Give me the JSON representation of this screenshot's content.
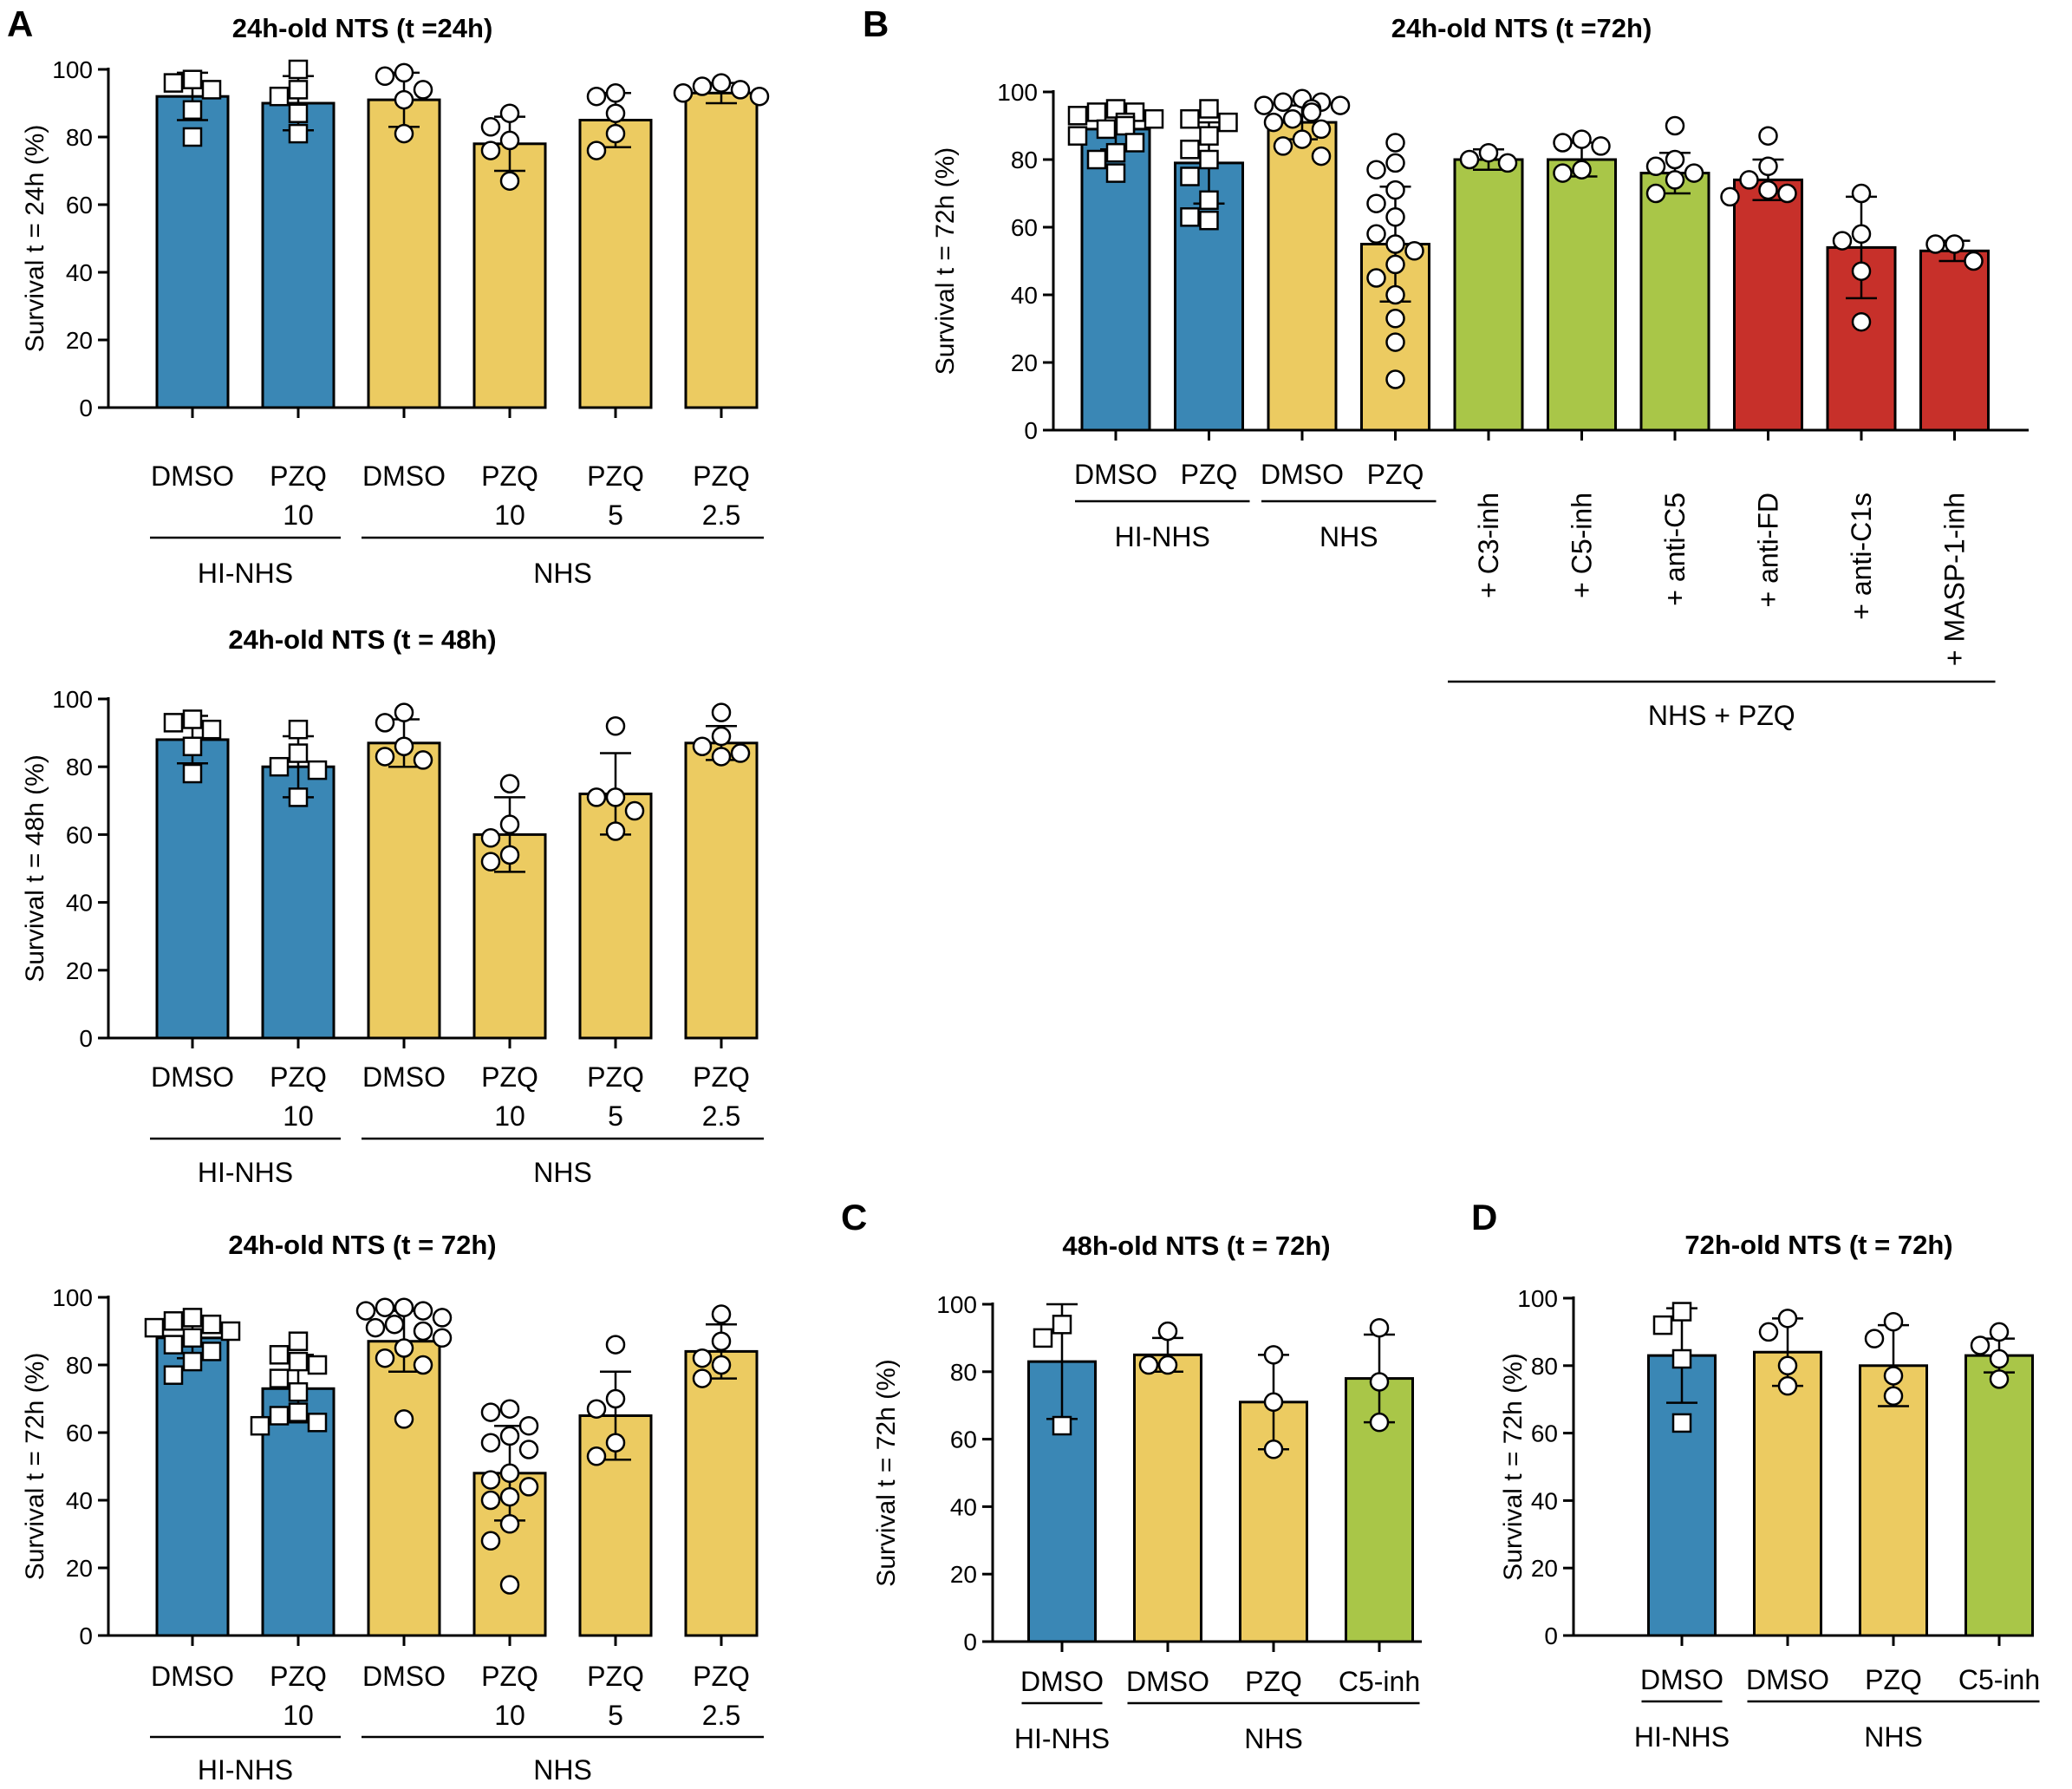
{
  "figure": {
    "colors": {
      "hi_nhs": "#3a87b5",
      "nhs": "#eccb61",
      "inhibitor": "#a9c648",
      "antibody": "#c7302a",
      "axis": "#000000",
      "marker_fill": "#ffffff"
    }
  },
  "chart_data": [
    {
      "id": "A1",
      "panel_letter": "A",
      "type": "bar",
      "title": "24h-old NTS (t =24h)",
      "ylabel": "Survival t = 24h (%)",
      "ylim": [
        0,
        100
      ],
      "yticks": [
        0,
        20,
        40,
        60,
        80,
        100
      ],
      "categories": [
        {
          "lines": [
            "DMSO"
          ],
          "value": 92,
          "sd": 7,
          "color": "hi_nhs",
          "marker": "square",
          "points": [
            97,
            96,
            94,
            88,
            80
          ]
        },
        {
          "lines": [
            "PZQ",
            "10"
          ],
          "value": 90,
          "sd": 8,
          "color": "hi_nhs",
          "marker": "square",
          "points": [
            100,
            94,
            92,
            87,
            81
          ]
        },
        {
          "lines": [
            "DMSO"
          ],
          "value": 91,
          "sd": 8,
          "color": "nhs",
          "marker": "circle",
          "points": [
            99,
            98,
            94,
            91,
            81
          ]
        },
        {
          "lines": [
            "PZQ",
            "10"
          ],
          "value": 78,
          "sd": 8,
          "color": "nhs",
          "marker": "circle",
          "points": [
            87,
            83,
            79,
            76,
            67
          ]
        },
        {
          "lines": [
            "PZQ",
            "5"
          ],
          "value": 85,
          "sd": 8,
          "color": "nhs",
          "marker": "circle",
          "points": [
            93,
            92,
            87,
            81,
            76
          ]
        },
        {
          "lines": [
            "PZQ",
            "2.5"
          ],
          "value": 93,
          "sd": 3,
          "color": "nhs",
          "marker": "circle",
          "points": [
            96,
            95,
            94,
            93,
            92
          ]
        }
      ],
      "groups": [
        {
          "label": "HI-NHS",
          "from": 0,
          "to": 1
        },
        {
          "label": "NHS",
          "from": 2,
          "to": 5
        }
      ]
    },
    {
      "id": "A2",
      "panel_letter": "",
      "type": "bar",
      "title": "24h-old NTS (t = 48h)",
      "ylabel": "Survival t = 48h (%)",
      "ylim": [
        0,
        100
      ],
      "yticks": [
        0,
        20,
        40,
        60,
        80,
        100
      ],
      "categories": [
        {
          "lines": [
            "DMSO"
          ],
          "value": 88,
          "sd": 7,
          "color": "hi_nhs",
          "marker": "square",
          "points": [
            94,
            93,
            91,
            86,
            78
          ]
        },
        {
          "lines": [
            "PZQ",
            "10"
          ],
          "value": 80,
          "sd": 9,
          "color": "hi_nhs",
          "marker": "square",
          "points": [
            91,
            84,
            80,
            79,
            71
          ]
        },
        {
          "lines": [
            "DMSO"
          ],
          "value": 87,
          "sd": 7,
          "color": "nhs",
          "marker": "circle",
          "points": [
            96,
            93,
            86,
            83,
            82
          ]
        },
        {
          "lines": [
            "PZQ",
            "10"
          ],
          "value": 60,
          "sd": 11,
          "color": "nhs",
          "marker": "circle",
          "points": [
            75,
            63,
            59,
            54,
            52
          ]
        },
        {
          "lines": [
            "PZQ",
            "5"
          ],
          "value": 72,
          "sd": 12,
          "color": "nhs",
          "marker": "circle",
          "points": [
            92,
            71,
            71,
            67,
            61
          ]
        },
        {
          "lines": [
            "PZQ",
            "2.5"
          ],
          "value": 87,
          "sd": 5,
          "color": "nhs",
          "marker": "circle",
          "points": [
            96,
            89,
            86,
            84,
            83
          ]
        }
      ],
      "groups": [
        {
          "label": "HI-NHS",
          "from": 0,
          "to": 1
        },
        {
          "label": "NHS",
          "from": 2,
          "to": 5
        }
      ]
    },
    {
      "id": "A3",
      "panel_letter": "",
      "type": "bar",
      "title": "24h-old NTS (t = 72h)",
      "ylabel": "Survival t = 72h (%)",
      "ylim": [
        0,
        100
      ],
      "yticks": [
        0,
        20,
        40,
        60,
        80,
        100
      ],
      "categories": [
        {
          "lines": [
            "DMSO"
          ],
          "value": 88,
          "sd": 6,
          "color": "hi_nhs",
          "marker": "square",
          "points": [
            94,
            93,
            92,
            91,
            90,
            88,
            86,
            84,
            81,
            77
          ]
        },
        {
          "lines": [
            "PZQ",
            "10"
          ],
          "value": 73,
          "sd": 10,
          "color": "hi_nhs",
          "marker": "square",
          "points": [
            87,
            83,
            81,
            80,
            76,
            72,
            66,
            65,
            63,
            62
          ]
        },
        {
          "lines": [
            "DMSO"
          ],
          "value": 87,
          "sd": 9,
          "color": "nhs",
          "marker": "circle",
          "points": [
            97,
            97,
            96,
            96,
            94,
            92,
            91,
            90,
            88,
            85,
            82,
            80,
            64
          ]
        },
        {
          "lines": [
            "PZQ",
            "10"
          ],
          "value": 48,
          "sd": 14,
          "color": "nhs",
          "marker": "circle",
          "points": [
            67,
            66,
            62,
            59,
            57,
            55,
            48,
            46,
            44,
            41,
            40,
            33,
            28,
            15
          ]
        },
        {
          "lines": [
            "PZQ",
            "5"
          ],
          "value": 65,
          "sd": 13,
          "color": "nhs",
          "marker": "circle",
          "points": [
            86,
            70,
            67,
            57,
            53
          ]
        },
        {
          "lines": [
            "PZQ",
            "2.5"
          ],
          "value": 84,
          "sd": 8,
          "color": "nhs",
          "marker": "circle",
          "points": [
            95,
            87,
            82,
            80,
            76
          ]
        }
      ],
      "groups": [
        {
          "label": "HI-NHS",
          "from": 0,
          "to": 1
        },
        {
          "label": "NHS",
          "from": 2,
          "to": 5
        }
      ]
    },
    {
      "id": "B",
      "panel_letter": "B",
      "type": "bar",
      "title": "24h-old NTS (t =72h)",
      "ylabel": "Survival t = 72h (%)",
      "ylim": [
        0,
        100
      ],
      "yticks": [
        0,
        20,
        40,
        60,
        80,
        100
      ],
      "categories": [
        {
          "lines": [
            "DMSO"
          ],
          "value": 89,
          "sd": 6,
          "color": "hi_nhs",
          "marker": "square",
          "points": [
            95,
            94,
            94,
            93,
            92,
            91,
            90,
            89,
            87,
            85,
            82,
            80,
            76
          ]
        },
        {
          "lines": [
            "PZQ"
          ],
          "value": 79,
          "sd": 12,
          "color": "hi_nhs",
          "marker": "square",
          "points": [
            95,
            92,
            91,
            87,
            83,
            80,
            75,
            68,
            63,
            62
          ]
        },
        {
          "lines": [
            "DMSO"
          ],
          "value": 91,
          "sd": 5,
          "color": "nhs",
          "marker": "circle",
          "points": [
            98,
            97,
            97,
            96,
            96,
            95,
            94,
            92,
            91,
            89,
            86,
            84,
            81
          ]
        },
        {
          "lines": [
            "PZQ"
          ],
          "value": 55,
          "sd": 17,
          "color": "nhs",
          "marker": "circle",
          "points": [
            85,
            79,
            77,
            71,
            67,
            63,
            58,
            55,
            53,
            49,
            45,
            40,
            33,
            26,
            15
          ]
        },
        {
          "lines": [
            "+ C3-inh"
          ],
          "value": 80,
          "sd": 3,
          "color": "inhibitor",
          "marker": "circle",
          "points": [
            82,
            80,
            79
          ]
        },
        {
          "lines": [
            "+ C5-inh"
          ],
          "value": 80,
          "sd": 5,
          "color": "inhibitor",
          "marker": "circle",
          "points": [
            86,
            85,
            84,
            77,
            76
          ]
        },
        {
          "lines": [
            "+ anti-C5"
          ],
          "value": 76,
          "sd": 6,
          "color": "inhibitor",
          "marker": "circle",
          "points": [
            90,
            80,
            78,
            76,
            74,
            70
          ]
        },
        {
          "lines": [
            "+ anti-FD"
          ],
          "value": 74,
          "sd": 6,
          "color": "antibody",
          "marker": "circle",
          "points": [
            87,
            78,
            74,
            71,
            70,
            69
          ]
        },
        {
          "lines": [
            "+ anti-C1s"
          ],
          "value": 54,
          "sd": 15,
          "color": "antibody",
          "marker": "circle",
          "points": [
            70,
            58,
            56,
            47,
            32
          ]
        },
        {
          "lines": [
            "+ MASP-1-inh"
          ],
          "value": 53,
          "sd": 3,
          "color": "antibody",
          "marker": "circle",
          "points": [
            55,
            55,
            50
          ]
        }
      ],
      "rotated_labels_from": 4,
      "groups": [
        {
          "label": "HI-NHS",
          "from": 0,
          "to": 1,
          "level": 1
        },
        {
          "label": "NHS",
          "from": 2,
          "to": 3,
          "level": 1
        },
        {
          "label": "NHS + PZQ",
          "from": 4,
          "to": 9,
          "level": 2
        }
      ]
    },
    {
      "id": "C",
      "panel_letter": "C",
      "type": "bar",
      "title": "48h-old NTS (t = 72h)",
      "ylabel": "Survival t = 72h (%)",
      "ylim": [
        0,
        100
      ],
      "yticks": [
        0,
        20,
        40,
        60,
        80,
        100
      ],
      "categories": [
        {
          "lines": [
            "DMSO"
          ],
          "value": 83,
          "sd": 17,
          "color": "hi_nhs",
          "marker": "square",
          "points": [
            94,
            90,
            64
          ]
        },
        {
          "lines": [
            "DMSO"
          ],
          "value": 85,
          "sd": 5,
          "color": "nhs",
          "marker": "circle",
          "points": [
            92,
            82,
            82
          ]
        },
        {
          "lines": [
            "PZQ"
          ],
          "value": 71,
          "sd": 14,
          "color": "nhs",
          "marker": "circle",
          "points": [
            85,
            71,
            57
          ]
        },
        {
          "lines": [
            "C5-inh"
          ],
          "value": 78,
          "sd": 13,
          "color": "inhibitor",
          "marker": "circle",
          "points": [
            93,
            77,
            65
          ]
        }
      ],
      "groups": [
        {
          "label": "HI-NHS",
          "from": 0,
          "to": 0
        },
        {
          "label": "NHS",
          "from": 1,
          "to": 3
        }
      ]
    },
    {
      "id": "D",
      "panel_letter": "D",
      "type": "bar",
      "title": "72h-old NTS (t = 72h)",
      "ylabel": "Survival t = 72h (%)",
      "ylim": [
        0,
        100
      ],
      "yticks": [
        0,
        20,
        40,
        60,
        80,
        100
      ],
      "categories": [
        {
          "lines": [
            "DMSO"
          ],
          "value": 83,
          "sd": 14,
          "color": "hi_nhs",
          "marker": "square",
          "points": [
            96,
            92,
            82,
            63
          ]
        },
        {
          "lines": [
            "DMSO"
          ],
          "value": 84,
          "sd": 10,
          "color": "nhs",
          "marker": "circle",
          "points": [
            94,
            90,
            80,
            74
          ]
        },
        {
          "lines": [
            "PZQ"
          ],
          "value": 80,
          "sd": 12,
          "color": "nhs",
          "marker": "circle",
          "points": [
            93,
            88,
            77,
            71
          ]
        },
        {
          "lines": [
            "C5-inh"
          ],
          "value": 83,
          "sd": 5,
          "color": "inhibitor",
          "marker": "circle",
          "points": [
            90,
            86,
            82,
            76
          ]
        }
      ],
      "groups": [
        {
          "label": "HI-NHS",
          "from": 0,
          "to": 0
        },
        {
          "label": "NHS",
          "from": 1,
          "to": 3
        }
      ]
    }
  ]
}
